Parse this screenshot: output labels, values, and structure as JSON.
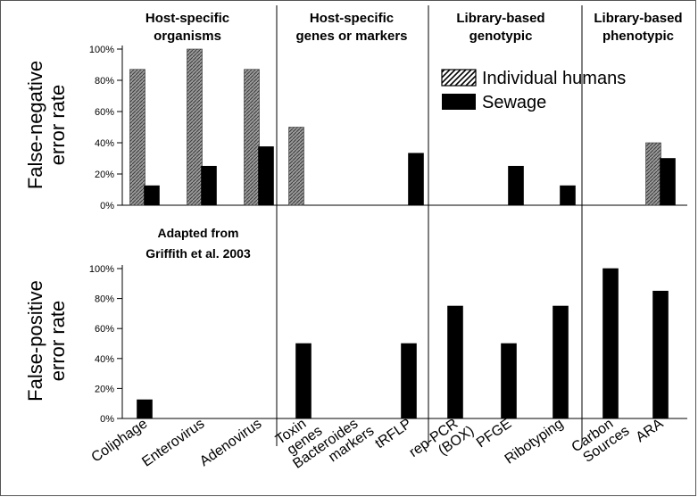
{
  "chart_data": {
    "type": "bar",
    "groups": [
      {
        "label_line1": "Host-specific",
        "label_line2": "organisms"
      },
      {
        "label_line1": "Host-specific",
        "label_line2": "genes or markers"
      },
      {
        "label_line1": "Library-based",
        "label_line2": "genotypic"
      },
      {
        "label_line1": "Library-based",
        "label_line2": "phenotypic"
      }
    ],
    "categories": [
      [
        "Coliphage"
      ],
      [
        "Enterovirus"
      ],
      [
        "Adenovirus"
      ],
      [
        "Toxin",
        "genes"
      ],
      [
        "Bacteroides",
        "markers"
      ],
      [
        "tRFLP"
      ],
      [
        "rep-PCR",
        "(BOX)"
      ],
      [
        "PFGE"
      ],
      [
        "Ribotyping"
      ],
      [
        "Carbon",
        "Sources"
      ],
      [
        "ARA"
      ]
    ],
    "legend": [
      "Individual humans",
      "Sewage"
    ],
    "colors": {
      "individual_humans": "#7a7a7a",
      "sewage": "#000000"
    },
    "top_panel": {
      "ylabel_line1": "False-negative",
      "ylabel_line2": "error rate",
      "ylim": [
        0,
        100
      ],
      "yticks": [
        "0%",
        "20%",
        "40%",
        "60%",
        "80%",
        "100%"
      ],
      "series": [
        {
          "name": "Individual humans",
          "values": [
            87,
            100,
            87,
            50,
            null,
            null,
            null,
            null,
            null,
            null,
            40
          ]
        },
        {
          "name": "Sewage",
          "values": [
            12.5,
            25,
            37.5,
            null,
            null,
            33.3,
            null,
            25,
            12.5,
            null,
            30
          ]
        }
      ]
    },
    "bottom_panel": {
      "ylabel_line1": "False-positive",
      "ylabel_line2": "error rate",
      "ylim": [
        0,
        100
      ],
      "yticks": [
        "0%",
        "20%",
        "40%",
        "60%",
        "80%",
        "100%"
      ],
      "series": [
        {
          "name": "Sewage",
          "values": [
            12.5,
            null,
            null,
            50,
            null,
            50,
            75,
            50,
            75,
            100,
            85
          ]
        }
      ]
    },
    "annotation_line1": "Adapted from",
    "annotation_line2": "Griffith et al. 2003",
    "legend_position": "top-right of top panel"
  }
}
